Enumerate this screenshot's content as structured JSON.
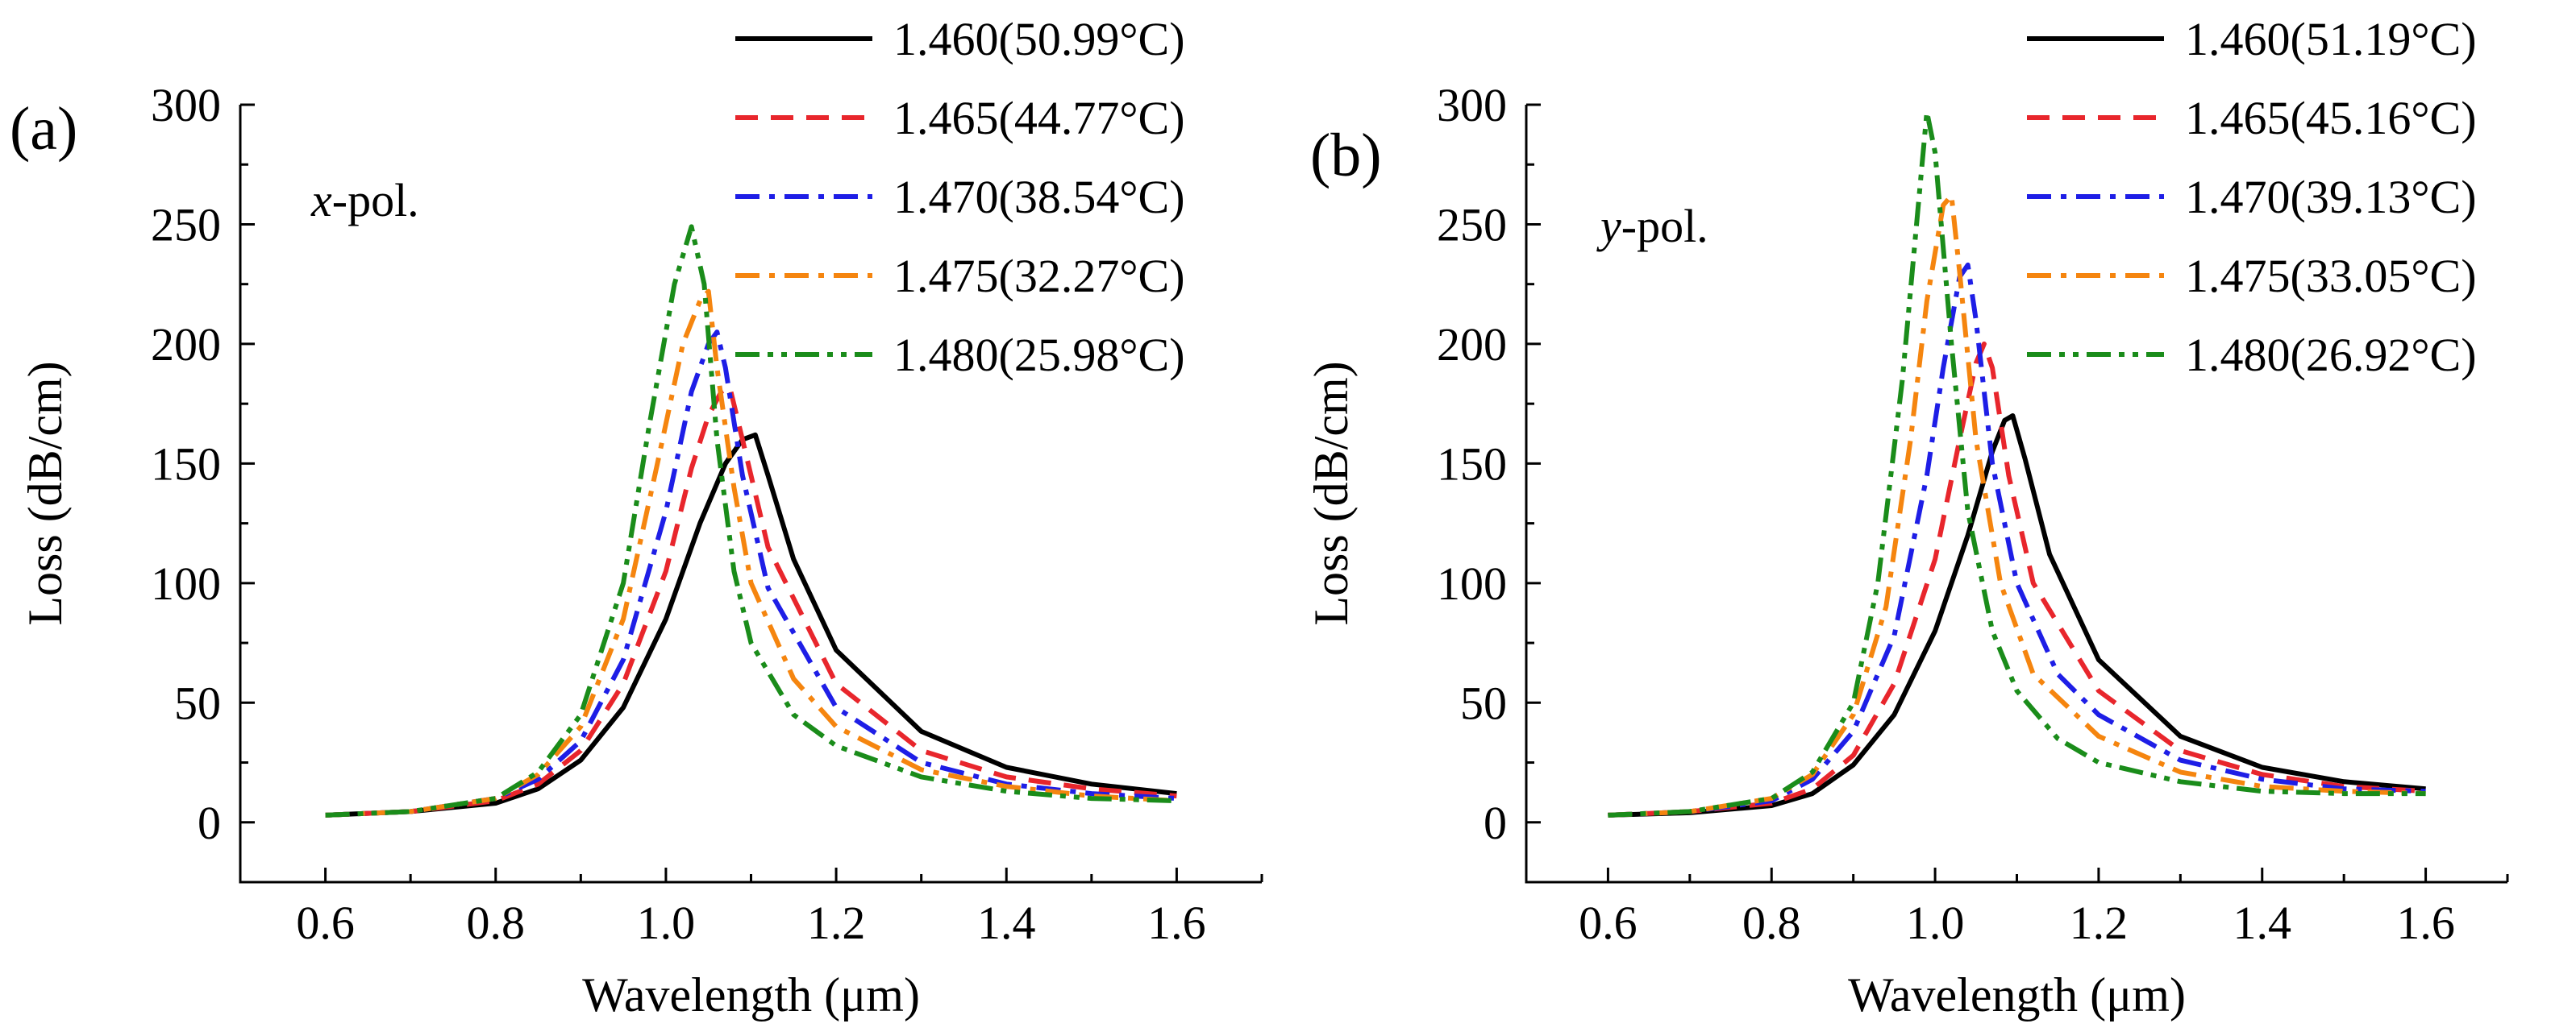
{
  "chart_data": [
    {
      "type": "line",
      "panel_label": "(a)",
      "annotation": {
        "italic": "x",
        "rest": "-pol."
      },
      "xlabel": "Wavelength (μm)",
      "ylabel": "Loss (dB/cm)",
      "xlim": [
        0.5,
        1.7
      ],
      "ylim": [
        -25,
        300
      ],
      "xticks": [
        0.6,
        0.8,
        1.0,
        1.2,
        1.4,
        1.6
      ],
      "yticks": [
        0,
        50,
        100,
        150,
        200,
        250,
        300
      ],
      "grid": false,
      "legend_position": "top-right",
      "series": [
        {
          "name": "1.460(50.99°C)",
          "color": "#000000",
          "dash": "solid",
          "points": [
            [
              0.6,
              3
            ],
            [
              0.7,
              4.5
            ],
            [
              0.8,
              8
            ],
            [
              0.85,
              14
            ],
            [
              0.9,
              26
            ],
            [
              0.95,
              48
            ],
            [
              1.0,
              85
            ],
            [
              1.04,
              125
            ],
            [
              1.07,
              150
            ],
            [
              1.09,
              160
            ],
            [
              1.105,
              162
            ],
            [
              1.12,
              145
            ],
            [
              1.15,
              110
            ],
            [
              1.2,
              72
            ],
            [
              1.3,
              38
            ],
            [
              1.4,
              23
            ],
            [
              1.5,
              16
            ],
            [
              1.6,
              12
            ]
          ]
        },
        {
          "name": "1.465(44.77°C)",
          "color": "#e8262c",
          "dash": "dashed",
          "points": [
            [
              0.6,
              3
            ],
            [
              0.7,
              4.5
            ],
            [
              0.8,
              9
            ],
            [
              0.85,
              16
            ],
            [
              0.9,
              30
            ],
            [
              0.95,
              58
            ],
            [
              1.0,
              105
            ],
            [
              1.03,
              148
            ],
            [
              1.05,
              170
            ],
            [
              1.065,
              180
            ],
            [
              1.075,
              182
            ],
            [
              1.09,
              160
            ],
            [
              1.12,
              115
            ],
            [
              1.2,
              58
            ],
            [
              1.3,
              30
            ],
            [
              1.4,
              19
            ],
            [
              1.5,
              14
            ],
            [
              1.6,
              11
            ]
          ]
        },
        {
          "name": "1.470(38.54°C)",
          "color": "#1e1ee6",
          "dash": "dashdot",
          "points": [
            [
              0.6,
              3
            ],
            [
              0.7,
              4.5
            ],
            [
              0.8,
              10
            ],
            [
              0.85,
              18
            ],
            [
              0.9,
              34
            ],
            [
              0.95,
              68
            ],
            [
              1.0,
              130
            ],
            [
              1.03,
              180
            ],
            [
              1.05,
              200
            ],
            [
              1.06,
              205
            ],
            [
              1.07,
              190
            ],
            [
              1.09,
              145
            ],
            [
              1.12,
              98
            ],
            [
              1.2,
              48
            ],
            [
              1.3,
              25
            ],
            [
              1.4,
              16
            ],
            [
              1.5,
              12
            ],
            [
              1.6,
              10
            ]
          ]
        },
        {
          "name": "1.475(32.27°C)",
          "color": "#f5850f",
          "dash": "dashdot",
          "points": [
            [
              0.6,
              3
            ],
            [
              0.7,
              4.5
            ],
            [
              0.8,
              10
            ],
            [
              0.85,
              20
            ],
            [
              0.9,
              40
            ],
            [
              0.95,
              85
            ],
            [
              0.99,
              150
            ],
            [
              1.02,
              200
            ],
            [
              1.04,
              218
            ],
            [
              1.05,
              222
            ],
            [
              1.06,
              190
            ],
            [
              1.08,
              140
            ],
            [
              1.1,
              100
            ],
            [
              1.15,
              60
            ],
            [
              1.2,
              40
            ],
            [
              1.3,
              22
            ],
            [
              1.4,
              15
            ],
            [
              1.5,
              11
            ],
            [
              1.6,
              9
            ]
          ]
        },
        {
          "name": "1.480(25.98°C)",
          "color": "#1a8c1a",
          "dash": "dashdotdot",
          "points": [
            [
              0.6,
              3
            ],
            [
              0.7,
              4.5
            ],
            [
              0.8,
              10
            ],
            [
              0.85,
              21
            ],
            [
              0.9,
              45
            ],
            [
              0.95,
              100
            ],
            [
              0.98,
              165
            ],
            [
              1.01,
              225
            ],
            [
              1.03,
              249
            ],
            [
              1.045,
              225
            ],
            [
              1.06,
              160
            ],
            [
              1.08,
              105
            ],
            [
              1.1,
              75
            ],
            [
              1.15,
              45
            ],
            [
              1.2,
              32
            ],
            [
              1.3,
              19
            ],
            [
              1.4,
              13
            ],
            [
              1.5,
              10
            ],
            [
              1.6,
              9
            ]
          ]
        }
      ]
    },
    {
      "type": "line",
      "panel_label": "(b)",
      "annotation": {
        "italic": "y",
        "rest": "-pol."
      },
      "xlabel": "Wavelength (μm)",
      "ylabel": "Loss (dB/cm)",
      "xlim": [
        0.5,
        1.7
      ],
      "ylim": [
        -25,
        300
      ],
      "xticks": [
        0.6,
        0.8,
        1.0,
        1.2,
        1.4,
        1.6
      ],
      "yticks": [
        0,
        50,
        100,
        150,
        200,
        250,
        300
      ],
      "grid": false,
      "legend_position": "top-right",
      "series": [
        {
          "name": "1.460(51.19°C)",
          "color": "#000000",
          "dash": "solid",
          "points": [
            [
              0.6,
              3
            ],
            [
              0.7,
              4
            ],
            [
              0.8,
              7
            ],
            [
              0.85,
              12
            ],
            [
              0.9,
              24
            ],
            [
              0.95,
              45
            ],
            [
              1.0,
              80
            ],
            [
              1.04,
              120
            ],
            [
              1.07,
              155
            ],
            [
              1.085,
              168
            ],
            [
              1.095,
              170
            ],
            [
              1.11,
              152
            ],
            [
              1.14,
              112
            ],
            [
              1.2,
              68
            ],
            [
              1.3,
              36
            ],
            [
              1.4,
              23
            ],
            [
              1.5,
              17
            ],
            [
              1.6,
              14
            ]
          ]
        },
        {
          "name": "1.465(45.16°C)",
          "color": "#e8262c",
          "dash": "dashed",
          "points": [
            [
              0.6,
              3
            ],
            [
              0.7,
              4.5
            ],
            [
              0.8,
              8
            ],
            [
              0.85,
              14
            ],
            [
              0.9,
              28
            ],
            [
              0.95,
              58
            ],
            [
              1.0,
              110
            ],
            [
              1.03,
              160
            ],
            [
              1.05,
              192
            ],
            [
              1.06,
              200
            ],
            [
              1.07,
              190
            ],
            [
              1.09,
              145
            ],
            [
              1.12,
              100
            ],
            [
              1.2,
              55
            ],
            [
              1.3,
              30
            ],
            [
              1.4,
              20
            ],
            [
              1.5,
              15
            ],
            [
              1.6,
              13
            ]
          ]
        },
        {
          "name": "1.470(39.13°C)",
          "color": "#1e1ee6",
          "dash": "dashdot",
          "points": [
            [
              0.6,
              3
            ],
            [
              0.7,
              4.5
            ],
            [
              0.8,
              9
            ],
            [
              0.85,
              18
            ],
            [
              0.9,
              38
            ],
            [
              0.95,
              78
            ],
            [
              0.99,
              145
            ],
            [
              1.01,
              190
            ],
            [
              1.03,
              228
            ],
            [
              1.04,
              233
            ],
            [
              1.05,
              210
            ],
            [
              1.07,
              150
            ],
            [
              1.1,
              100
            ],
            [
              1.15,
              62
            ],
            [
              1.2,
              45
            ],
            [
              1.3,
              26
            ],
            [
              1.4,
              18
            ],
            [
              1.5,
              14
            ],
            [
              1.6,
              13
            ]
          ]
        },
        {
          "name": "1.475(33.05°C)",
          "color": "#f5850f",
          "dash": "dashdot",
          "points": [
            [
              0.6,
              3
            ],
            [
              0.7,
              4.5
            ],
            [
              0.8,
              10
            ],
            [
              0.85,
              20
            ],
            [
              0.9,
              45
            ],
            [
              0.94,
              90
            ],
            [
              0.97,
              160
            ],
            [
              0.99,
              218
            ],
            [
              1.01,
              258
            ],
            [
              1.02,
              262
            ],
            [
              1.03,
              230
            ],
            [
              1.05,
              160
            ],
            [
              1.08,
              100
            ],
            [
              1.12,
              62
            ],
            [
              1.2,
              36
            ],
            [
              1.3,
              21
            ],
            [
              1.4,
              15
            ],
            [
              1.5,
              13
            ],
            [
              1.6,
              12
            ]
          ]
        },
        {
          "name": "1.480(26.92°C)",
          "color": "#1a8c1a",
          "dash": "dashdotdot",
          "points": [
            [
              0.6,
              3
            ],
            [
              0.7,
              4.5
            ],
            [
              0.8,
              10
            ],
            [
              0.85,
              21
            ],
            [
              0.9,
              50
            ],
            [
              0.93,
              100
            ],
            [
              0.96,
              185
            ],
            [
              0.98,
              260
            ],
            [
              0.99,
              297
            ],
            [
              1.0,
              280
            ],
            [
              1.02,
              200
            ],
            [
              1.04,
              130
            ],
            [
              1.07,
              80
            ],
            [
              1.1,
              55
            ],
            [
              1.15,
              35
            ],
            [
              1.2,
              25
            ],
            [
              1.3,
              17
            ],
            [
              1.4,
              13
            ],
            [
              1.5,
              12
            ],
            [
              1.6,
              12
            ]
          ]
        }
      ]
    }
  ]
}
